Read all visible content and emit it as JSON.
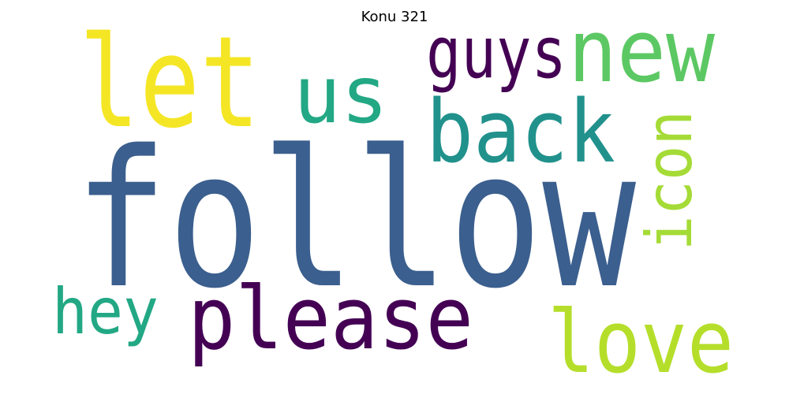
{
  "title": "Konu 321",
  "words": [
    {
      "text": "follow",
      "color": "#3b5f8e"
    },
    {
      "text": "let",
      "color": "#f5e625"
    },
    {
      "text": "us",
      "color": "#22a884"
    },
    {
      "text": "guys",
      "color": "#440154"
    },
    {
      "text": "new",
      "color": "#5cc863"
    },
    {
      "text": "back",
      "color": "#21918c"
    },
    {
      "text": "icon",
      "color": "#a5db36"
    },
    {
      "text": "hey",
      "color": "#22a884"
    },
    {
      "text": "please",
      "color": "#440154"
    },
    {
      "text": "love",
      "color": "#b5de2b"
    }
  ]
}
